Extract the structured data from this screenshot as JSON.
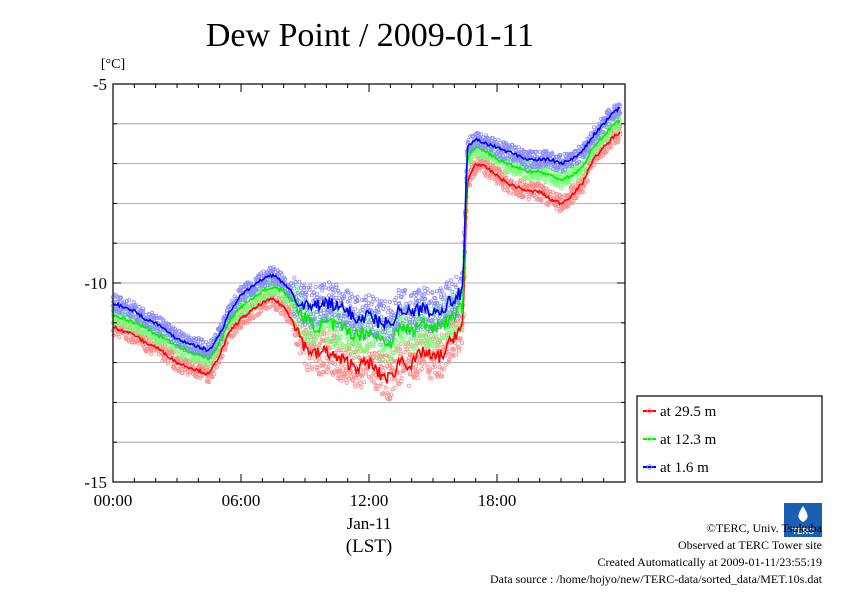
{
  "chart_data": {
    "type": "line",
    "title": "Dew Point / 2009-01-11",
    "ylabel": "[°C]",
    "xlabel": "Jan-11",
    "xlabel2": "(LST)",
    "ylim": [
      -15,
      -5
    ],
    "xlim_hours": [
      0,
      24
    ],
    "yticks": [
      {
        "value": -5,
        "label": "-5"
      },
      {
        "value": -10,
        "label": "-10"
      },
      {
        "value": -15,
        "label": "-15"
      }
    ],
    "ygrid_step": 1,
    "xticks": [
      {
        "value": 0,
        "label": "00:00"
      },
      {
        "value": 6,
        "label": "06:00"
      },
      {
        "value": 12,
        "label": "12:00"
      },
      {
        "value": 18,
        "label": "18:00"
      }
    ],
    "grid": true,
    "legend_position": "lower-right-outside",
    "series": [
      {
        "name": "at 29.5 m",
        "line_color": "#ff0000",
        "band_color": "#ff8c8c",
        "x": [
          0,
          0.5,
          1,
          1.5,
          2,
          2.5,
          3,
          3.5,
          4,
          4.5,
          5,
          5.5,
          6,
          6.5,
          7,
          7.5,
          8,
          8.5,
          9,
          9.5,
          10,
          10.5,
          11,
          11.5,
          12,
          12.5,
          13,
          13.5,
          14,
          14.5,
          15,
          15.5,
          16,
          16.4,
          16.6,
          16.8,
          17,
          17.5,
          18,
          18.5,
          19,
          19.5,
          20,
          20.5,
          21,
          21.5,
          22,
          22.5,
          23,
          23.5,
          23.8
        ],
        "values": [
          -11.1,
          -11.2,
          -11.3,
          -11.5,
          -11.6,
          -11.8,
          -12.0,
          -12.1,
          -12.2,
          -12.3,
          -11.8,
          -11.2,
          -10.9,
          -10.7,
          -10.5,
          -10.4,
          -10.6,
          -11.0,
          -11.6,
          -11.8,
          -11.7,
          -11.9,
          -12.0,
          -12.1,
          -12.0,
          -12.3,
          -12.4,
          -11.9,
          -12.1,
          -11.7,
          -11.9,
          -11.8,
          -11.3,
          -11.1,
          -7.5,
          -7.2,
          -7.0,
          -7.1,
          -7.3,
          -7.5,
          -7.6,
          -7.7,
          -7.7,
          -7.9,
          -8.0,
          -7.8,
          -7.5,
          -6.9,
          -6.6,
          -6.3,
          -6.2
        ]
      },
      {
        "name": "at 12.3 m",
        "line_color": "#00ee00",
        "band_color": "#7dff7d",
        "x": [
          0,
          0.5,
          1,
          1.5,
          2,
          2.5,
          3,
          3.5,
          4,
          4.5,
          5,
          5.5,
          6,
          6.5,
          7,
          7.5,
          8,
          8.5,
          9,
          9.5,
          10,
          10.5,
          11,
          11.5,
          12,
          12.5,
          13,
          13.5,
          14,
          14.5,
          15,
          15.5,
          16,
          16.4,
          16.6,
          16.8,
          17,
          17.5,
          18,
          18.5,
          19,
          19.5,
          20,
          20.5,
          21,
          21.5,
          22,
          22.5,
          23,
          23.5,
          23.8
        ],
        "values": [
          -10.8,
          -10.9,
          -11.0,
          -11.1,
          -11.3,
          -11.4,
          -11.6,
          -11.7,
          -11.8,
          -11.9,
          -11.5,
          -10.9,
          -10.6,
          -10.4,
          -10.2,
          -10.1,
          -10.2,
          -10.5,
          -10.9,
          -11.1,
          -11.0,
          -11.1,
          -11.2,
          -11.3,
          -11.2,
          -11.4,
          -11.5,
          -11.1,
          -11.2,
          -11.0,
          -11.1,
          -11.0,
          -10.8,
          -10.6,
          -6.9,
          -6.7,
          -6.6,
          -6.7,
          -6.9,
          -7.0,
          -7.1,
          -7.2,
          -7.2,
          -7.3,
          -7.4,
          -7.3,
          -7.1,
          -6.6,
          -6.3,
          -6.0,
          -5.9
        ]
      },
      {
        "name": "at 1.6 m",
        "line_color": "#0000ff",
        "band_color": "#8c8cff",
        "x": [
          0,
          0.5,
          1,
          1.5,
          2,
          2.5,
          3,
          3.5,
          4,
          4.5,
          5,
          5.5,
          6,
          6.5,
          7,
          7.5,
          8,
          8.5,
          9,
          9.5,
          10,
          10.5,
          11,
          11.5,
          12,
          12.5,
          13,
          13.5,
          14,
          14.5,
          15,
          15.5,
          16,
          16.4,
          16.6,
          16.8,
          17,
          17.5,
          18,
          18.5,
          19,
          19.5,
          20,
          20.5,
          21,
          21.5,
          22,
          22.5,
          23,
          23.5,
          23.8
        ],
        "values": [
          -10.5,
          -10.6,
          -10.7,
          -10.9,
          -11.0,
          -11.2,
          -11.4,
          -11.5,
          -11.6,
          -11.7,
          -11.3,
          -10.7,
          -10.3,
          -10.1,
          -9.9,
          -9.8,
          -10.0,
          -10.3,
          -10.6,
          -10.6,
          -10.5,
          -10.6,
          -10.7,
          -10.9,
          -10.8,
          -11.0,
          -11.0,
          -10.6,
          -10.8,
          -10.6,
          -10.7,
          -10.6,
          -10.4,
          -10.2,
          -6.6,
          -6.5,
          -6.4,
          -6.5,
          -6.6,
          -6.7,
          -6.8,
          -6.9,
          -6.9,
          -6.9,
          -7.0,
          -6.9,
          -6.7,
          -6.3,
          -6.0,
          -5.7,
          -5.6
        ]
      }
    ]
  },
  "footer": {
    "line1": "©TERC, Univ. Tsukuba",
    "line2": "Observed at TERC Tower site",
    "line3": "Created Automatically at 2009-01-11/23:55:19",
    "line4": "Data source : /home/hojyo/new/TERC-data/sorted_data/MET.10s.dat",
    "logo_text": "TERC"
  }
}
